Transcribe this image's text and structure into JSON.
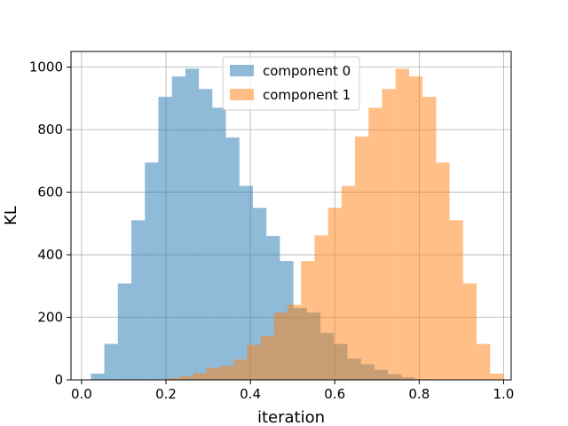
{
  "chart_data": {
    "type": "histogram",
    "xlabel": "iteration",
    "ylabel": "KL",
    "xlim": [
      -0.0,
      1.0
    ],
    "ylim": [
      0,
      1050
    ],
    "xticks": [
      0.0,
      0.2,
      0.4,
      0.6,
      0.8,
      1.0
    ],
    "xtick_labels": [
      "0.0",
      "0.2",
      "0.4",
      "0.6",
      "0.8",
      "1.0"
    ],
    "yticks": [
      0,
      200,
      400,
      600,
      800,
      1000
    ],
    "ytick_labels": [
      "0",
      "200",
      "400",
      "600",
      "800",
      "1000"
    ],
    "grid": true,
    "legend_position": "top-center",
    "series": [
      {
        "name": "component 0",
        "color": "#1f77b4",
        "alpha": 0.5,
        "bins": [
          {
            "x0": 0.022,
            "x1": 0.054,
            "value": 20
          },
          {
            "x0": 0.054,
            "x1": 0.086,
            "value": 115
          },
          {
            "x0": 0.086,
            "x1": 0.118,
            "value": 308
          },
          {
            "x0": 0.118,
            "x1": 0.15,
            "value": 510
          },
          {
            "x0": 0.15,
            "x1": 0.182,
            "value": 695
          },
          {
            "x0": 0.182,
            "x1": 0.214,
            "value": 905
          },
          {
            "x0": 0.214,
            "x1": 0.246,
            "value": 970
          },
          {
            "x0": 0.246,
            "x1": 0.278,
            "value": 995
          },
          {
            "x0": 0.278,
            "x1": 0.31,
            "value": 930
          },
          {
            "x0": 0.31,
            "x1": 0.342,
            "value": 870
          },
          {
            "x0": 0.342,
            "x1": 0.374,
            "value": 775
          },
          {
            "x0": 0.374,
            "x1": 0.406,
            "value": 620
          },
          {
            "x0": 0.406,
            "x1": 0.438,
            "value": 550
          },
          {
            "x0": 0.438,
            "x1": 0.47,
            "value": 460
          },
          {
            "x0": 0.47,
            "x1": 0.502,
            "value": 380
          },
          {
            "x0": 0.502,
            "x1": 0.534,
            "value": 230
          },
          {
            "x0": 0.534,
            "x1": 0.566,
            "value": 215
          },
          {
            "x0": 0.566,
            "x1": 0.598,
            "value": 150
          },
          {
            "x0": 0.598,
            "x1": 0.63,
            "value": 115
          },
          {
            "x0": 0.63,
            "x1": 0.662,
            "value": 68
          },
          {
            "x0": 0.662,
            "x1": 0.694,
            "value": 50
          },
          {
            "x0": 0.694,
            "x1": 0.726,
            "value": 32
          },
          {
            "x0": 0.726,
            "x1": 0.758,
            "value": 18
          },
          {
            "x0": 0.758,
            "x1": 0.79,
            "value": 8
          },
          {
            "x0": 0.79,
            "x1": 0.822,
            "value": 2
          }
        ]
      },
      {
        "name": "component 1",
        "color": "#ff7f0e",
        "alpha": 0.5,
        "bins": [
          {
            "x0": 0.2,
            "x1": 0.232,
            "value": 5
          },
          {
            "x0": 0.232,
            "x1": 0.264,
            "value": 12
          },
          {
            "x0": 0.264,
            "x1": 0.296,
            "value": 22
          },
          {
            "x0": 0.296,
            "x1": 0.328,
            "value": 38
          },
          {
            "x0": 0.328,
            "x1": 0.36,
            "value": 45
          },
          {
            "x0": 0.36,
            "x1": 0.392,
            "value": 65
          },
          {
            "x0": 0.392,
            "x1": 0.424,
            "value": 112
          },
          {
            "x0": 0.424,
            "x1": 0.456,
            "value": 140
          },
          {
            "x0": 0.456,
            "x1": 0.488,
            "value": 215
          },
          {
            "x0": 0.488,
            "x1": 0.52,
            "value": 240
          },
          {
            "x0": 0.52,
            "x1": 0.552,
            "value": 380
          },
          {
            "x0": 0.552,
            "x1": 0.584,
            "value": 462
          },
          {
            "x0": 0.584,
            "x1": 0.616,
            "value": 550
          },
          {
            "x0": 0.616,
            "x1": 0.648,
            "value": 620
          },
          {
            "x0": 0.648,
            "x1": 0.68,
            "value": 778
          },
          {
            "x0": 0.68,
            "x1": 0.712,
            "value": 870
          },
          {
            "x0": 0.712,
            "x1": 0.744,
            "value": 930
          },
          {
            "x0": 0.744,
            "x1": 0.776,
            "value": 995
          },
          {
            "x0": 0.776,
            "x1": 0.808,
            "value": 970
          },
          {
            "x0": 0.808,
            "x1": 0.84,
            "value": 905
          },
          {
            "x0": 0.84,
            "x1": 0.872,
            "value": 695
          },
          {
            "x0": 0.872,
            "x1": 0.904,
            "value": 510
          },
          {
            "x0": 0.904,
            "x1": 0.936,
            "value": 308
          },
          {
            "x0": 0.936,
            "x1": 0.968,
            "value": 115
          },
          {
            "x0": 0.968,
            "x1": 1.0,
            "value": 20
          }
        ]
      }
    ]
  }
}
